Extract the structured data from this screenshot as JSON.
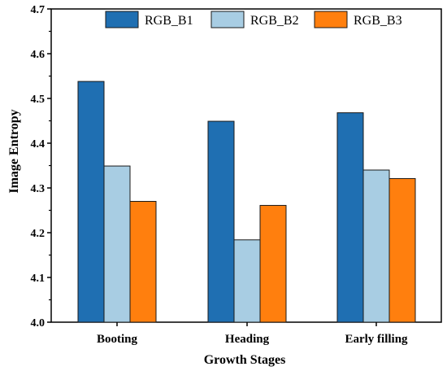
{
  "chart_data": {
    "type": "bar",
    "categories": [
      "Booting",
      "Heading",
      "Early filling"
    ],
    "series": [
      {
        "name": "RGB_B1",
        "color": "#1f6fb2",
        "values": [
          4.538,
          4.449,
          4.468
        ]
      },
      {
        "name": "RGB_B2",
        "color": "#a8cde3",
        "values": [
          4.349,
          4.184,
          4.34
        ]
      },
      {
        "name": "RGB_B3",
        "color": "#ff7f0e",
        "values": [
          4.27,
          4.261,
          4.321
        ]
      }
    ],
    "xlabel": "Growth Stages",
    "ylabel": "Image Entropy",
    "ylim": [
      4.0,
      4.7
    ],
    "yticks": [
      "4.0",
      "4.1",
      "4.2",
      "4.3",
      "4.4",
      "4.5",
      "4.6",
      "4.7"
    ],
    "grid": false,
    "legend_position": "top"
  }
}
